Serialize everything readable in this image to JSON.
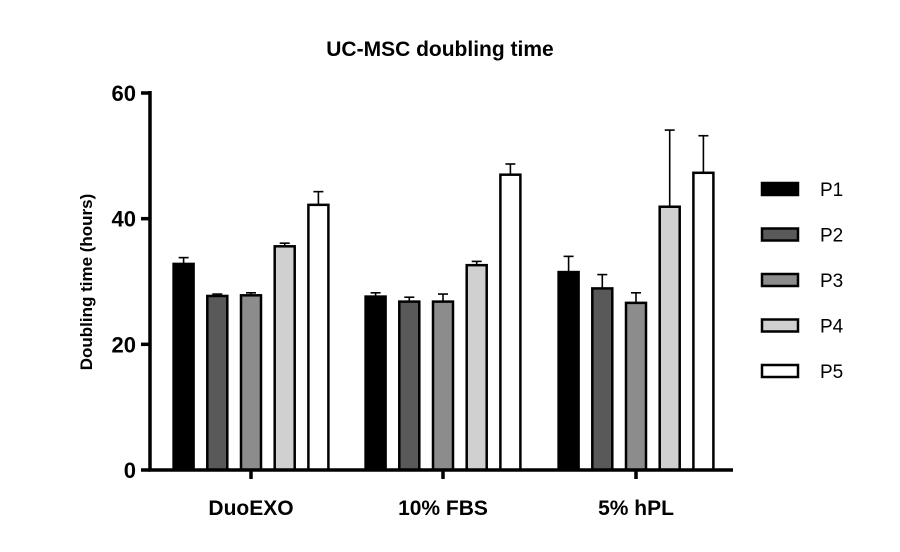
{
  "chart_data": {
    "type": "bar",
    "title": "UC-MSC doubling time",
    "xlabel": "",
    "ylabel": "Doubling time (hours)",
    "ylim": [
      0,
      60
    ],
    "yticks": [
      0,
      20,
      40,
      60
    ],
    "categories": [
      "DuoEXO",
      "10% FBS",
      "5% hPL"
    ],
    "legend_position": "right",
    "grid": false,
    "series": [
      {
        "name": "P1",
        "color": "#000000",
        "values": [
          32.8,
          27.6,
          31.5
        ],
        "errors": [
          1.0,
          0.6,
          2.5
        ]
      },
      {
        "name": "P2",
        "color": "#595959",
        "values": [
          27.7,
          26.8,
          28.9
        ],
        "errors": [
          0.3,
          0.7,
          2.2
        ]
      },
      {
        "name": "P3",
        "color": "#8c8c8c",
        "values": [
          27.8,
          26.8,
          26.6
        ],
        "errors": [
          0.4,
          1.2,
          1.6
        ]
      },
      {
        "name": "P4",
        "color": "#d0d0d0",
        "values": [
          35.6,
          32.6,
          41.9
        ],
        "errors": [
          0.5,
          0.6,
          12.2
        ]
      },
      {
        "name": "P5",
        "color": "#ffffff",
        "values": [
          42.2,
          47.0,
          47.3
        ],
        "errors": [
          2.1,
          1.7,
          5.9
        ]
      }
    ]
  }
}
